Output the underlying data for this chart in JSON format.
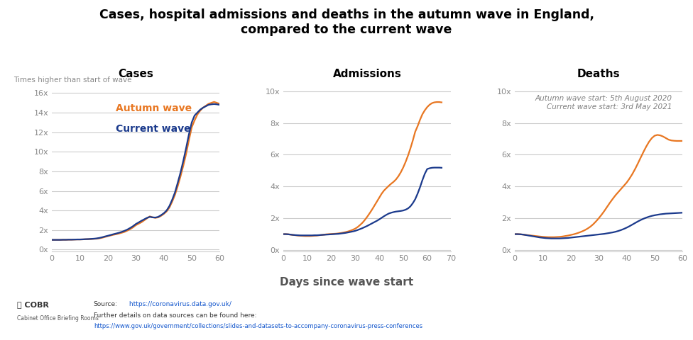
{
  "title": "Cases, hospital admissions and deaths in the autumn wave in England,\ncompared to the current wave",
  "subtitle_autumn": "Autumn wave start: 5th August 2020",
  "subtitle_current": "Current wave start: 3rd May 2021",
  "xlabel": "Days since wave start",
  "ylabel_cases": "Times higher than start of wave",
  "autumn_color": "#E87722",
  "current_color": "#1B3A8C",
  "autumn_label": "Autumn wave",
  "current_label": "Current wave",
  "background_color": "#FFFFFF",
  "title_color": "#000000",
  "subtitle_color": "#808080",
  "xlabel_color": "#555555",
  "panel_titles": [
    "Cases",
    "Admissions",
    "Deaths"
  ],
  "cases_autumn_x": [
    0,
    1,
    2,
    3,
    4,
    5,
    6,
    7,
    8,
    9,
    10,
    11,
    12,
    13,
    14,
    15,
    16,
    17,
    18,
    19,
    20,
    21,
    22,
    23,
    24,
    25,
    26,
    27,
    28,
    29,
    30,
    31,
    32,
    33,
    34,
    35,
    36,
    37,
    38,
    39,
    40,
    41,
    42,
    43,
    44,
    45,
    46,
    47,
    48,
    49,
    50,
    51,
    52,
    53,
    54,
    55,
    56,
    57,
    58,
    59,
    60
  ],
  "cases_autumn_y": [
    1.0,
    1.0,
    1.0,
    1.0,
    1.01,
    1.01,
    1.02,
    1.02,
    1.03,
    1.04,
    1.04,
    1.05,
    1.06,
    1.07,
    1.08,
    1.1,
    1.12,
    1.16,
    1.22,
    1.3,
    1.38,
    1.45,
    1.52,
    1.58,
    1.65,
    1.73,
    1.82,
    1.95,
    2.1,
    2.28,
    2.5,
    2.65,
    2.8,
    3.0,
    3.2,
    3.4,
    3.3,
    3.25,
    3.3,
    3.45,
    3.65,
    3.9,
    4.3,
    4.9,
    5.6,
    6.5,
    7.5,
    8.6,
    9.8,
    11.2,
    12.5,
    13.2,
    13.8,
    14.2,
    14.5,
    14.7,
    14.9,
    15.0,
    15.1,
    15.0,
    14.9
  ],
  "cases_current_x": [
    0,
    1,
    2,
    3,
    4,
    5,
    6,
    7,
    8,
    9,
    10,
    11,
    12,
    13,
    14,
    15,
    16,
    17,
    18,
    19,
    20,
    21,
    22,
    23,
    24,
    25,
    26,
    27,
    28,
    29,
    30,
    31,
    32,
    33,
    34,
    35,
    36,
    37,
    38,
    39,
    40,
    41,
    42,
    43,
    44,
    45,
    46,
    47,
    48,
    49,
    50,
    51,
    52,
    53,
    54,
    55,
    56,
    57,
    58,
    59,
    60
  ],
  "cases_current_y": [
    1.0,
    1.0,
    1.0,
    1.0,
    1.01,
    1.01,
    1.02,
    1.02,
    1.03,
    1.04,
    1.04,
    1.05,
    1.07,
    1.08,
    1.1,
    1.12,
    1.15,
    1.2,
    1.27,
    1.35,
    1.42,
    1.5,
    1.58,
    1.65,
    1.73,
    1.82,
    1.93,
    2.06,
    2.22,
    2.4,
    2.62,
    2.78,
    2.95,
    3.1,
    3.25,
    3.35,
    3.3,
    3.28,
    3.35,
    3.52,
    3.72,
    4.0,
    4.45,
    5.1,
    5.85,
    6.85,
    7.9,
    9.1,
    10.4,
    11.8,
    13.0,
    13.7,
    14.0,
    14.3,
    14.5,
    14.65,
    14.8,
    14.85,
    14.88,
    14.85,
    14.8
  ],
  "admissions_autumn_x": [
    0,
    1,
    2,
    3,
    4,
    5,
    6,
    7,
    8,
    9,
    10,
    11,
    12,
    13,
    14,
    15,
    16,
    17,
    18,
    19,
    20,
    21,
    22,
    23,
    24,
    25,
    26,
    27,
    28,
    29,
    30,
    31,
    32,
    33,
    34,
    35,
    36,
    37,
    38,
    39,
    40,
    41,
    42,
    43,
    44,
    45,
    46,
    47,
    48,
    49,
    50,
    51,
    52,
    53,
    54,
    55,
    56,
    57,
    58,
    59,
    60,
    61,
    62,
    63,
    64,
    65,
    66
  ],
  "admissions_autumn_y": [
    1.0,
    1.0,
    0.99,
    0.97,
    0.95,
    0.93,
    0.91,
    0.9,
    0.89,
    0.88,
    0.88,
    0.88,
    0.89,
    0.9,
    0.91,
    0.93,
    0.95,
    0.97,
    0.99,
    1.0,
    1.01,
    1.02,
    1.03,
    1.05,
    1.07,
    1.1,
    1.13,
    1.17,
    1.22,
    1.28,
    1.35,
    1.45,
    1.58,
    1.72,
    1.9,
    2.1,
    2.32,
    2.55,
    2.8,
    3.05,
    3.3,
    3.55,
    3.75,
    3.9,
    4.05,
    4.18,
    4.3,
    4.45,
    4.65,
    4.9,
    5.2,
    5.55,
    5.95,
    6.4,
    6.9,
    7.45,
    7.8,
    8.2,
    8.55,
    8.8,
    9.0,
    9.15,
    9.25,
    9.3,
    9.32,
    9.32,
    9.3
  ],
  "admissions_current_x": [
    0,
    1,
    2,
    3,
    4,
    5,
    6,
    7,
    8,
    9,
    10,
    11,
    12,
    13,
    14,
    15,
    16,
    17,
    18,
    19,
    20,
    21,
    22,
    23,
    24,
    25,
    26,
    27,
    28,
    29,
    30,
    31,
    32,
    33,
    34,
    35,
    36,
    37,
    38,
    39,
    40,
    41,
    42,
    43,
    44,
    45,
    46,
    47,
    48,
    49,
    50,
    51,
    52,
    53,
    54,
    55,
    56,
    57,
    58,
    59,
    60,
    61,
    62,
    63,
    64,
    65,
    66
  ],
  "admissions_current_y": [
    1.0,
    1.0,
    0.99,
    0.97,
    0.95,
    0.94,
    0.93,
    0.92,
    0.92,
    0.92,
    0.92,
    0.92,
    0.92,
    0.93,
    0.93,
    0.94,
    0.95,
    0.96,
    0.97,
    0.98,
    0.99,
    1.0,
    1.01,
    1.02,
    1.04,
    1.06,
    1.08,
    1.11,
    1.14,
    1.17,
    1.21,
    1.26,
    1.32,
    1.38,
    1.45,
    1.52,
    1.6,
    1.68,
    1.76,
    1.84,
    1.93,
    2.03,
    2.13,
    2.22,
    2.3,
    2.35,
    2.39,
    2.42,
    2.44,
    2.46,
    2.49,
    2.54,
    2.62,
    2.75,
    2.95,
    3.2,
    3.55,
    3.95,
    4.4,
    4.8,
    5.1,
    5.15,
    5.18,
    5.19,
    5.19,
    5.19,
    5.18
  ],
  "deaths_autumn_x": [
    0,
    1,
    2,
    3,
    4,
    5,
    6,
    7,
    8,
    9,
    10,
    11,
    12,
    13,
    14,
    15,
    16,
    17,
    18,
    19,
    20,
    21,
    22,
    23,
    24,
    25,
    26,
    27,
    28,
    29,
    30,
    31,
    32,
    33,
    34,
    35,
    36,
    37,
    38,
    39,
    40,
    41,
    42,
    43,
    44,
    45,
    46,
    47,
    48,
    49,
    50,
    51,
    52,
    53,
    54,
    55,
    56,
    57,
    58,
    59,
    60
  ],
  "deaths_autumn_y": [
    1.0,
    1.0,
    0.99,
    0.97,
    0.95,
    0.93,
    0.91,
    0.89,
    0.87,
    0.85,
    0.83,
    0.82,
    0.81,
    0.81,
    0.81,
    0.82,
    0.83,
    0.85,
    0.88,
    0.91,
    0.95,
    0.99,
    1.04,
    1.1,
    1.17,
    1.25,
    1.35,
    1.47,
    1.62,
    1.8,
    2.0,
    2.22,
    2.46,
    2.72,
    2.98,
    3.22,
    3.45,
    3.65,
    3.85,
    4.05,
    4.25,
    4.5,
    4.78,
    5.1,
    5.45,
    5.82,
    6.18,
    6.52,
    6.82,
    7.05,
    7.2,
    7.25,
    7.22,
    7.15,
    7.05,
    6.95,
    6.9,
    6.88,
    6.87,
    6.87,
    6.87
  ],
  "deaths_current_x": [
    0,
    1,
    2,
    3,
    4,
    5,
    6,
    7,
    8,
    9,
    10,
    11,
    12,
    13,
    14,
    15,
    16,
    17,
    18,
    19,
    20,
    21,
    22,
    23,
    24,
    25,
    26,
    27,
    28,
    29,
    30,
    31,
    32,
    33,
    34,
    35,
    36,
    37,
    38,
    39,
    40,
    41,
    42,
    43,
    44,
    45,
    46,
    47,
    48,
    49,
    50,
    51,
    52,
    53,
    54,
    55,
    56,
    57,
    58,
    59,
    60
  ],
  "deaths_current_y": [
    1.0,
    1.0,
    0.99,
    0.97,
    0.94,
    0.91,
    0.88,
    0.85,
    0.82,
    0.79,
    0.77,
    0.75,
    0.74,
    0.73,
    0.73,
    0.73,
    0.73,
    0.74,
    0.75,
    0.76,
    0.78,
    0.8,
    0.82,
    0.84,
    0.86,
    0.88,
    0.9,
    0.92,
    0.94,
    0.96,
    0.98,
    1.0,
    1.02,
    1.05,
    1.08,
    1.11,
    1.15,
    1.2,
    1.26,
    1.33,
    1.41,
    1.5,
    1.6,
    1.7,
    1.8,
    1.89,
    1.97,
    2.04,
    2.1,
    2.15,
    2.19,
    2.22,
    2.25,
    2.27,
    2.29,
    2.3,
    2.31,
    2.32,
    2.33,
    2.34,
    2.35
  ],
  "cases_yticks": [
    0,
    2,
    4,
    6,
    8,
    10,
    12,
    14,
    16
  ],
  "cases_ylim": [
    -0.2,
    17
  ],
  "cases_xlim": [
    0,
    60
  ],
  "cases_xticks": [
    0,
    10,
    20,
    30,
    40,
    50,
    60
  ],
  "admissions_yticks": [
    0,
    2,
    4,
    6,
    8,
    10
  ],
  "admissions_ylim": [
    -0.1,
    10.5
  ],
  "admissions_xlim": [
    0,
    70
  ],
  "admissions_xticks": [
    0,
    10,
    20,
    30,
    40,
    50,
    60,
    70
  ],
  "deaths_yticks": [
    0,
    2,
    4,
    6,
    8,
    10
  ],
  "deaths_ylim": [
    -0.1,
    10.5
  ],
  "deaths_xlim": [
    0,
    60
  ],
  "deaths_xticks": [
    0,
    10,
    20,
    30,
    40,
    50,
    60
  ],
  "grid_color": "#CCCCCC",
  "tick_label_color": "#888888",
  "source_line1": "Source: https://coronavirus.data.gov.uk/",
  "source_line2": "Further details on data sources can be found here:",
  "source_line3": "https://www.gov.uk/government/collections/slides-and-datasets-to-accompany-coronavirus-press-conferences"
}
